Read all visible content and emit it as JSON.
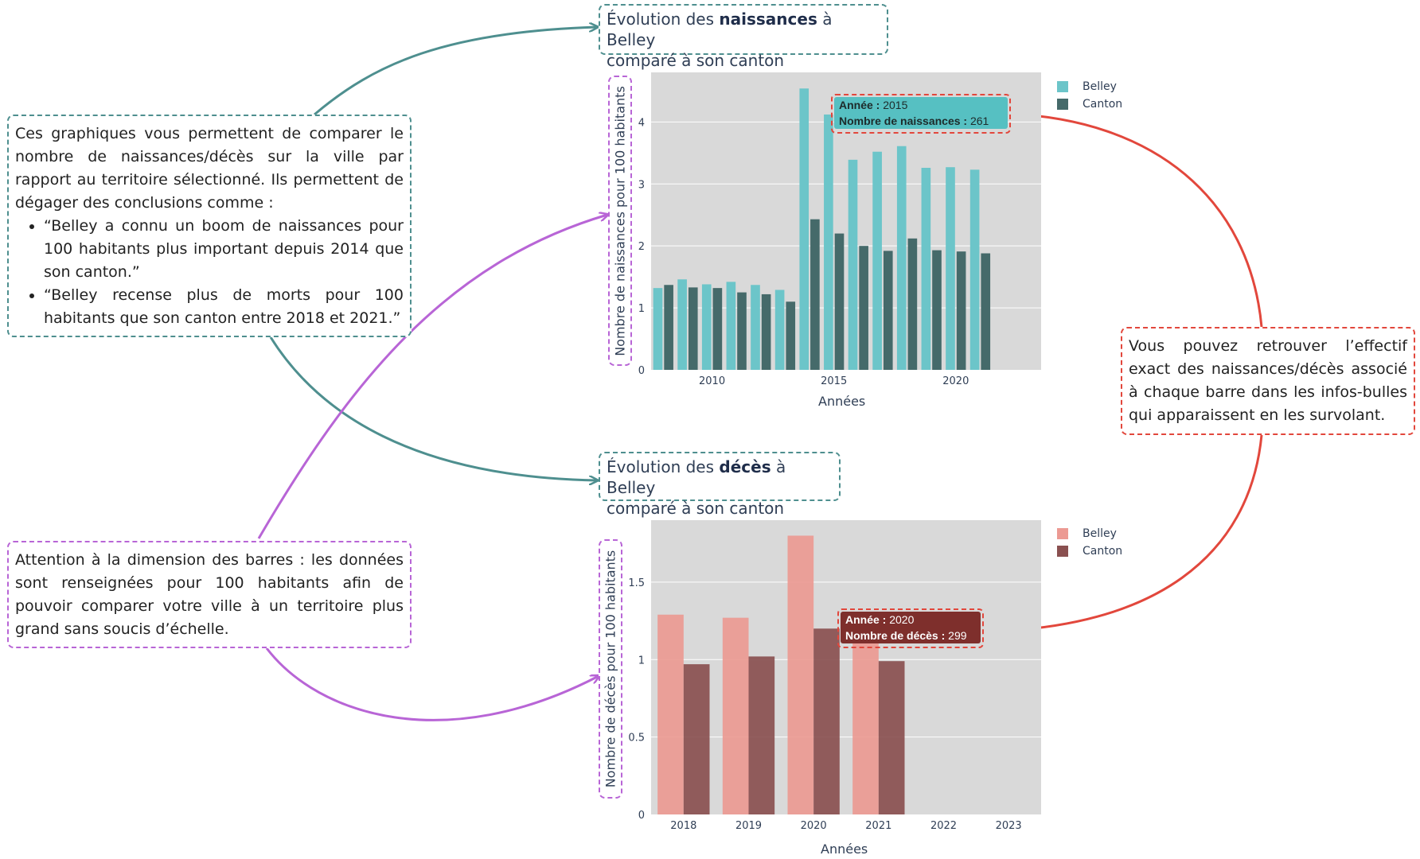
{
  "left_notes": {
    "top": {
      "intro": "Ces graphiques vous permettent de comparer le nombre de naissances/décès sur la ville par rapport au territoire sélectionné. Ils permettent de dégager des conclusions comme  :",
      "bullets": [
        "“Belley a connu un boom de naissances pour 100 habitants plus important depuis 2014 que son canton.”",
        "“Belley recense plus de morts pour 100 habitants que son canton entre 2018 et  2021.”"
      ]
    },
    "bottom": "Attention à la dimension des barres : les données sont renseignées pour 100 habitants afin de pouvoir comparer votre ville à un territoire plus grand sans soucis d’échelle."
  },
  "right_note": "Vous pouvez retrouver l’effectif exact des naissances/décès associé à chaque barre dans les infos-bulles qui apparaissent en les survolant.",
  "births_title": {
    "pre": "Évolution des ",
    "bold": "naissances",
    "post": " à Belley",
    "line2": "comparé à son canton"
  },
  "deaths_title": {
    "pre": "Évolution des ",
    "bold": "décès",
    "post": " à Belley",
    "line2": "comparé à son canton"
  },
  "births_tooltip": {
    "year_label": "Année :",
    "year": "2015",
    "count_label": "Nombre de naissances :",
    "count": "261"
  },
  "deaths_tooltip": {
    "year_label": "Année :",
    "year": "2020",
    "count_label": "Nombre de décès :",
    "count": "299"
  },
  "colors": {
    "teal_arrow": "#4e8f8f",
    "purple": "#b865d6",
    "red": "#e2473c",
    "belley_births": "#6cc5c9",
    "canton_births": "#456a6a",
    "belley_deaths": "#ec9a93",
    "canton_deaths": "#8a5050",
    "plot_bg": "#d9d9d9"
  },
  "chart_data": [
    {
      "type": "bar",
      "ylabel": "Nombre de naissances pour 100 habitants",
      "xlabel": "Années",
      "x": [
        2008,
        2009,
        2010,
        2011,
        2012,
        2013,
        2014,
        2015,
        2016,
        2017,
        2018,
        2019,
        2020,
        2021
      ],
      "xticks": [
        2010,
        2015,
        2020
      ],
      "yticks": [
        0,
        1,
        2,
        3,
        4
      ],
      "ylim": [
        0,
        4.8
      ],
      "series": [
        {
          "name": "Belley",
          "values": [
            1.32,
            1.46,
            1.38,
            1.42,
            1.37,
            1.29,
            4.54,
            4.12,
            3.39,
            3.52,
            3.61,
            3.26,
            3.27,
            3.23
          ]
        },
        {
          "name": "Canton",
          "values": [
            1.37,
            1.33,
            1.32,
            1.25,
            1.22,
            1.1,
            2.43,
            2.2,
            2.0,
            1.92,
            2.12,
            1.93,
            1.91,
            1.88
          ]
        }
      ],
      "legend_position": "top-right",
      "grid": true
    },
    {
      "type": "bar",
      "ylabel": "Nombre de décès pour 100 habitants",
      "xlabel": "Années",
      "categories": [
        "2018",
        "2019",
        "2020",
        "2021",
        "2022",
        "2023"
      ],
      "yticks": [
        0,
        0.5,
        1,
        1.5
      ],
      "ylim": [
        0,
        1.9
      ],
      "series": [
        {
          "name": "Belley",
          "values": [
            1.29,
            1.27,
            1.8,
            1.15,
            null,
            null
          ]
        },
        {
          "name": "Canton",
          "values": [
            0.97,
            1.02,
            1.2,
            0.99,
            null,
            null
          ]
        }
      ],
      "legend_position": "top-right",
      "grid": true
    }
  ]
}
